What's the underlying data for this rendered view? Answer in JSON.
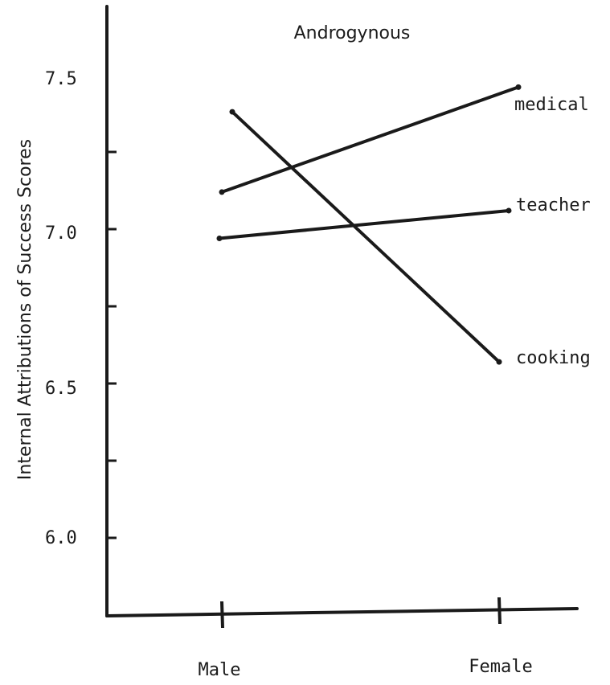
{
  "chart_data": {
    "type": "line",
    "title": "Androgynous",
    "xlabel": "",
    "ylabel": "Internal Attributions of Success Scores",
    "categories": [
      "Male",
      "Female"
    ],
    "yticks": [
      "6.0",
      "6.5",
      "7.0",
      "7.5"
    ],
    "ylim": [
      5.85,
      7.8
    ],
    "grid": false,
    "series": [
      {
        "name": "medical",
        "values": [
          7.12,
          7.46
        ]
      },
      {
        "name": "teacher",
        "values": [
          6.97,
          7.06
        ]
      },
      {
        "name": "cooking",
        "values": [
          7.38,
          6.57
        ]
      }
    ],
    "colors": {
      "ink": "#1a1a1a",
      "background": "#ffffff"
    }
  }
}
